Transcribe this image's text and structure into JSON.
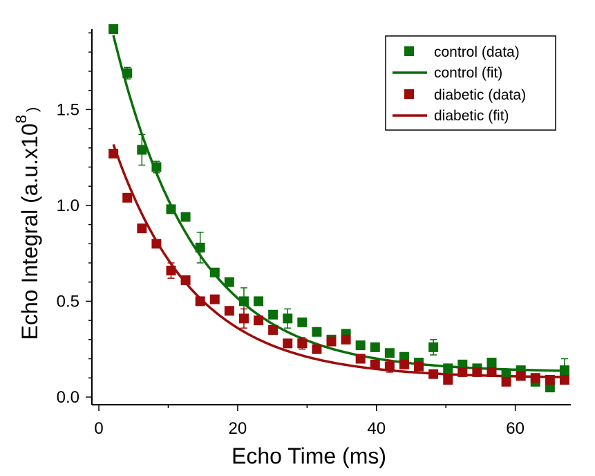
{
  "chart_data": {
    "type": "scatter",
    "xlabel": "Echo Time (ms)",
    "ylabel": "Echo Integral (a.u.x10",
    "ylabel_exponent": "8",
    "ylabel_close": ")",
    "xlim": [
      -1,
      68
    ],
    "ylim": [
      -0.04,
      1.92
    ],
    "xticks": [
      0,
      20,
      40,
      60
    ],
    "yticks": [
      0.0,
      0.5,
      1.0,
      1.5
    ],
    "ytick_labels": [
      "0.0",
      "0.5",
      "1.0",
      "1.5"
    ],
    "legend_position": "top-right",
    "series": [
      {
        "name": "control (data)",
        "kind": "scatter",
        "color": "#0a6e0a",
        "x": [
          2.1,
          4.1,
          6.2,
          8.3,
          10.4,
          12.5,
          14.6,
          16.7,
          18.8,
          20.9,
          23.0,
          25.1,
          27.2,
          29.3,
          31.4,
          33.5,
          35.6,
          37.7,
          39.8,
          41.9,
          44.0,
          46.1,
          48.2,
          50.3,
          52.4,
          54.5,
          56.6,
          58.7,
          60.8,
          62.9,
          65.0,
          67.1
        ],
        "y": [
          1.92,
          1.69,
          1.29,
          1.2,
          0.98,
          0.94,
          0.78,
          0.65,
          0.6,
          0.5,
          0.5,
          0.43,
          0.41,
          0.39,
          0.34,
          0.3,
          0.33,
          0.27,
          0.26,
          0.23,
          0.21,
          0.18,
          0.26,
          0.15,
          0.17,
          0.15,
          0.18,
          0.12,
          0.14,
          0.08,
          0.05,
          0.14
        ],
        "err": [
          0,
          0.03,
          0.08,
          0.03,
          0.02,
          0.02,
          0.08,
          0.02,
          0.02,
          0.07,
          0.02,
          0.02,
          0.05,
          0.02,
          0.02,
          0.02,
          0.02,
          0.02,
          0.02,
          0.02,
          0.02,
          0.02,
          0.04,
          0.02,
          0.02,
          0.02,
          0.02,
          0.02,
          0.02,
          0.02,
          0.02,
          0.06
        ]
      },
      {
        "name": "control (fit)",
        "kind": "line",
        "color": "#0a6e0a",
        "A": 2.1,
        "tau": 11.8,
        "c": 0.13
      },
      {
        "name": "diabetic (data)",
        "kind": "scatter",
        "color": "#9e0b0b",
        "x": [
          2.1,
          4.1,
          6.2,
          8.3,
          10.4,
          12.5,
          14.6,
          16.7,
          18.8,
          20.9,
          23.0,
          25.1,
          27.2,
          29.3,
          31.4,
          33.5,
          35.6,
          37.7,
          39.8,
          41.9,
          44.0,
          46.1,
          48.2,
          50.3,
          52.4,
          54.5,
          56.6,
          58.7,
          60.8,
          62.9,
          65.0,
          67.1
        ],
        "y": [
          1.27,
          1.04,
          0.88,
          0.8,
          0.66,
          0.61,
          0.5,
          0.51,
          0.45,
          0.41,
          0.4,
          0.35,
          0.28,
          0.28,
          0.25,
          0.29,
          0.3,
          0.2,
          0.17,
          0.16,
          0.17,
          0.16,
          0.12,
          0.09,
          0.13,
          0.13,
          0.13,
          0.08,
          0.11,
          0.1,
          0.09,
          0.09
        ],
        "err": [
          0,
          0.02,
          0.02,
          0.02,
          0.04,
          0.02,
          0.02,
          0.02,
          0.02,
          0.05,
          0.02,
          0.02,
          0.02,
          0.03,
          0.02,
          0.02,
          0.02,
          0.02,
          0.02,
          0.03,
          0.02,
          0.02,
          0.02,
          0.02,
          0.02,
          0.02,
          0.02,
          0.02,
          0.02,
          0.02,
          0.02,
          0.02
        ]
      },
      {
        "name": "diabetic (fit)",
        "kind": "line",
        "color": "#9e0b0b",
        "A": 1.46,
        "tau": 11.6,
        "c": 0.1
      }
    ]
  }
}
